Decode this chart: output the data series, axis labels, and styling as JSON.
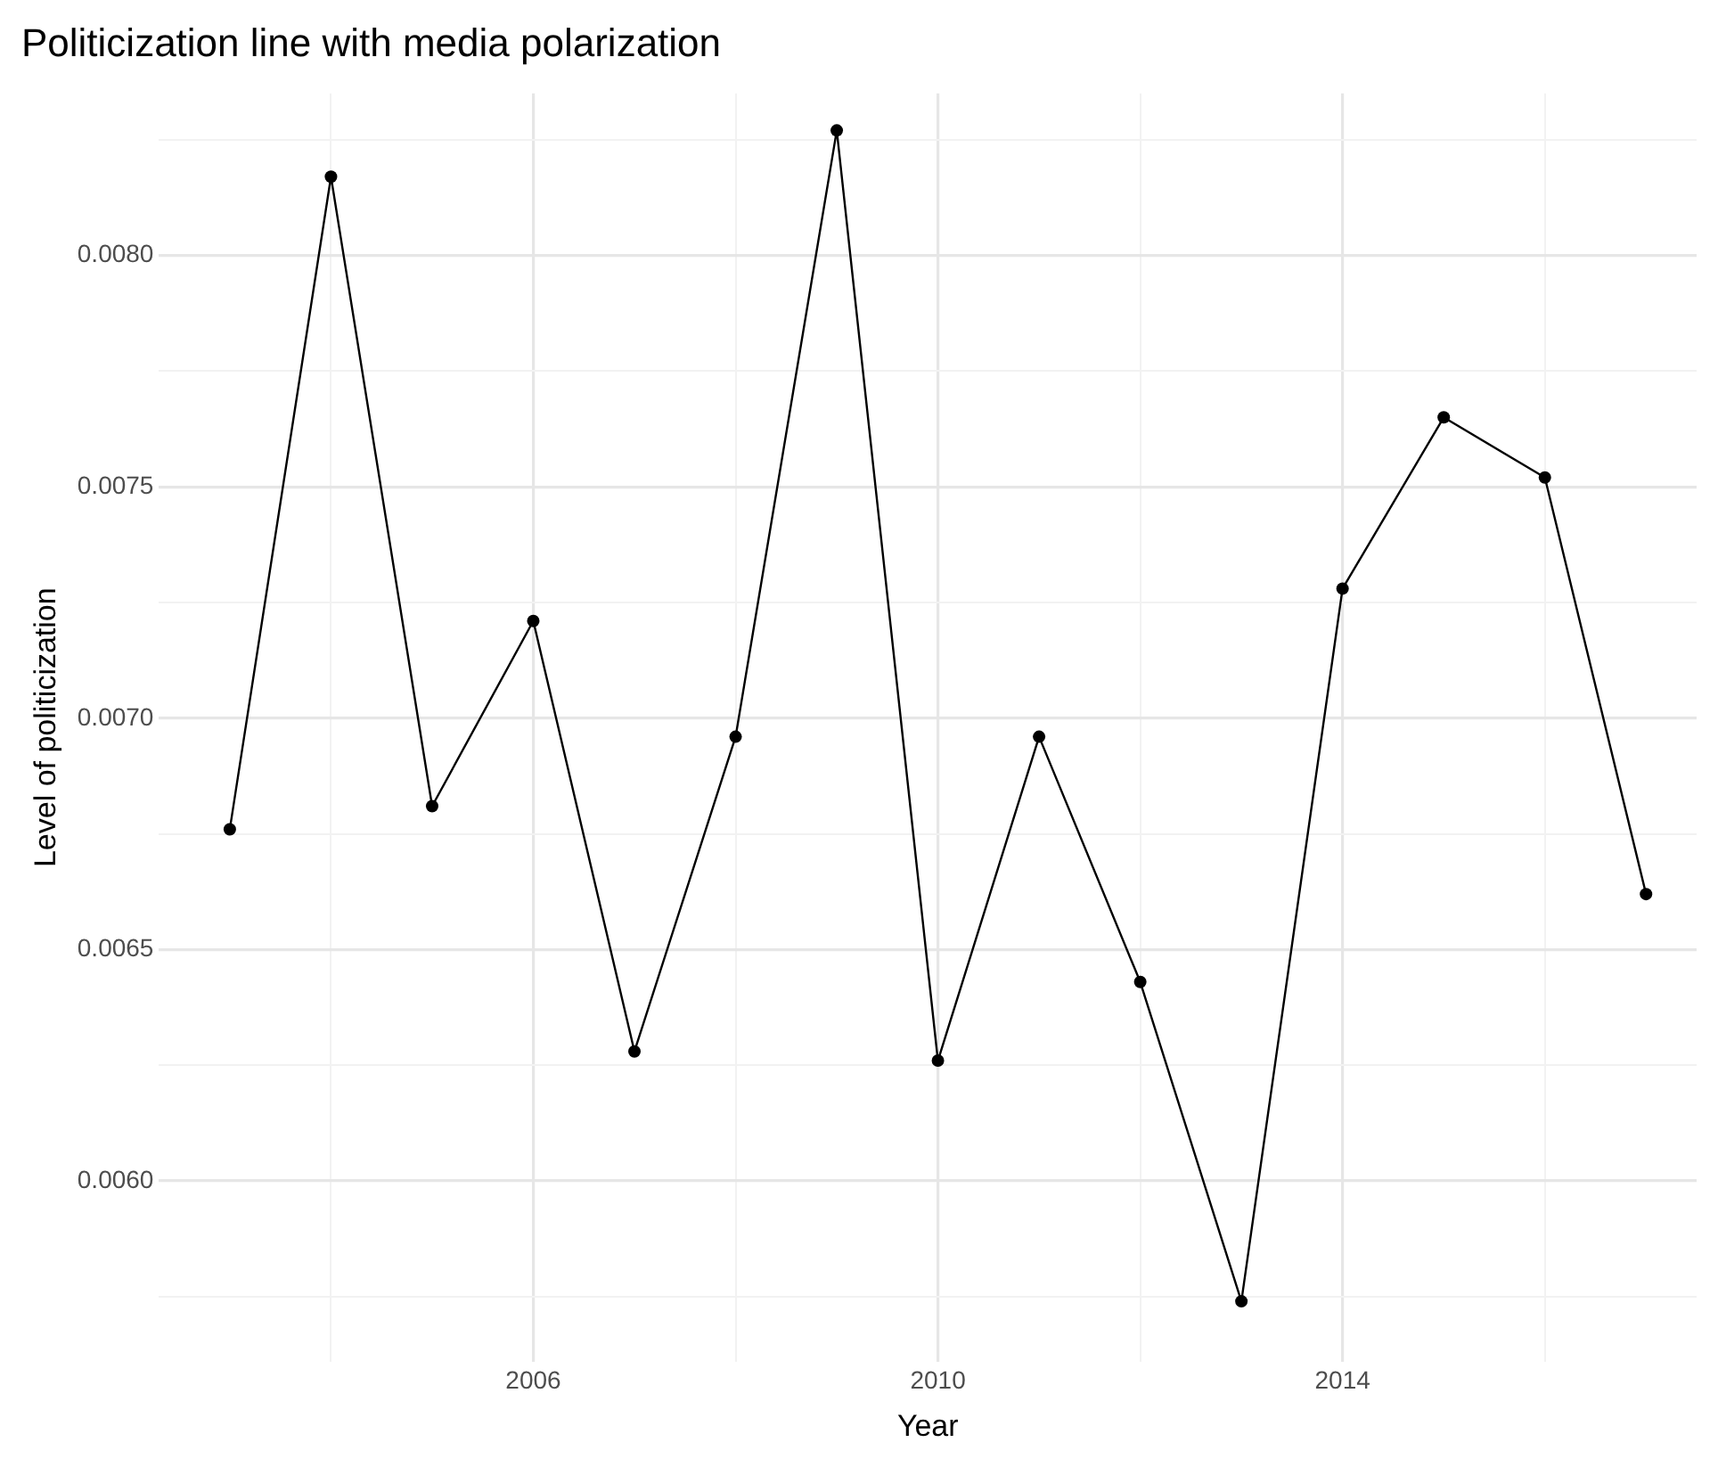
{
  "chart_data": {
    "type": "line",
    "title": "Politicization line with media polarization",
    "xlabel": "Year",
    "ylabel": "Level of politicization",
    "x": [
      2003,
      2004,
      2005,
      2006,
      2007,
      2008,
      2009,
      2010,
      2011,
      2012,
      2013,
      2014,
      2015,
      2016,
      2017
    ],
    "series": [
      {
        "color": "#000000",
        "values": [
          0.00676,
          0.00817,
          0.00681,
          0.00721,
          0.00628,
          0.00696,
          0.00827,
          0.00626,
          0.00696,
          0.00643,
          0.00574,
          0.00728,
          0.00765,
          0.00752,
          0.00662
        ]
      }
    ],
    "xlim": [
      2002.3,
      2017.5
    ],
    "xticks": [
      {
        "value": 2004,
        "label": null
      },
      2006,
      {
        "value": 2008,
        "label": null
      },
      2010,
      {
        "value": 2012,
        "label": null
      },
      2014,
      {
        "value": 2016,
        "label": null
      }
    ],
    "ylim": [
      0.00561,
      0.00835
    ],
    "yticks": [
      {
        "value": 0.00575,
        "label": null
      },
      {
        "value": 0.006,
        "label": "0.0060"
      },
      {
        "value": 0.00625,
        "label": null
      },
      0.0065,
      {
        "value": 0.00675,
        "label": null
      },
      {
        "value": 0.007,
        "label": "0.0070"
      },
      {
        "value": 0.00725,
        "label": null
      },
      0.0075,
      {
        "value": 0.00775,
        "label": null
      },
      {
        "value": 0.008,
        "label": "0.0080"
      },
      {
        "value": 0.00825,
        "label": null
      }
    ],
    "grid": true,
    "marker": "circle",
    "line_style": "solid",
    "legend": false
  }
}
